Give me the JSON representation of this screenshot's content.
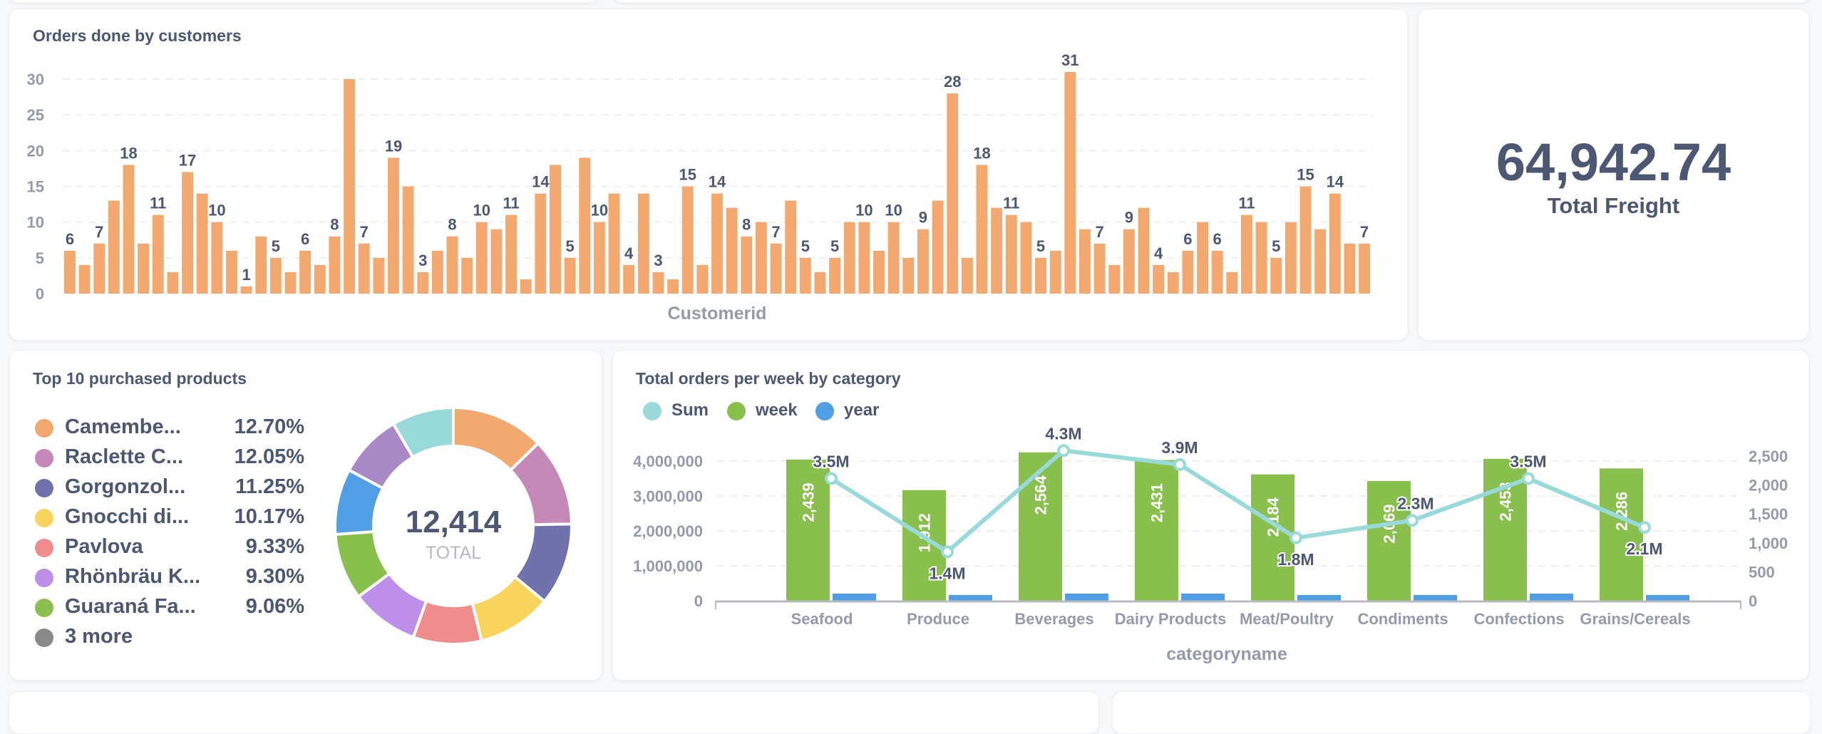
{
  "dashboard": {
    "orders_card": {
      "title": "Orders done by customers"
    },
    "freight_card": {
      "value": "64,942.74",
      "label": "Total Freight"
    },
    "products_card": {
      "title": "Top 10 purchased products",
      "legend": [
        {
          "name": "Camembe...",
          "percent": "12.70%",
          "color": "#f2a86f"
        },
        {
          "name": "Raclette C...",
          "percent": "12.05%",
          "color": "#c589b9"
        },
        {
          "name": "Gorgonzol...",
          "percent": "11.25%",
          "color": "#7172ad"
        },
        {
          "name": "Gnocchi di...",
          "percent": "10.17%",
          "color": "#f9d45c"
        },
        {
          "name": "Pavlova",
          "percent": "9.33%",
          "color": "#ef8c8c"
        },
        {
          "name": "Rhönbräu K...",
          "percent": "9.30%",
          "color": "#bd8fe9"
        },
        {
          "name": "Guaraná Fa...",
          "percent": "9.06%",
          "color": "#88bf4d"
        }
      ],
      "more_label": "3 more",
      "more_color": "#888888",
      "total": "12,414",
      "total_label": "TOTAL"
    },
    "category_card": {
      "title": "Total orders per week by category",
      "legend": [
        {
          "name": "Sum",
          "color": "#98d9d9"
        },
        {
          "name": "week",
          "color": "#88bf4d"
        },
        {
          "name": "year",
          "color": "#509ee3"
        }
      ]
    }
  },
  "chart_data": [
    {
      "type": "bar",
      "title": "Orders done by customers",
      "xlabel": "Customerid",
      "ylabel": "",
      "ylim": [
        0,
        31
      ],
      "yticks": [
        0,
        5,
        10,
        15,
        20,
        25,
        30
      ],
      "grid": true,
      "color": "#f2a86f",
      "values": [
        6,
        4,
        7,
        13,
        18,
        7,
        11,
        3,
        17,
        14,
        10,
        6,
        1,
        8,
        5,
        3,
        6,
        4,
        8,
        30,
        7,
        5,
        19,
        15,
        3,
        6,
        8,
        5,
        10,
        9,
        11,
        2,
        14,
        18,
        5,
        19,
        10,
        14,
        4,
        14,
        3,
        2,
        15,
        4,
        14,
        12,
        8,
        10,
        7,
        13,
        5,
        3,
        5,
        10,
        10,
        6,
        10,
        5,
        9,
        13,
        28,
        5,
        18,
        12,
        11,
        10,
        5,
        6,
        31,
        9,
        7,
        4,
        9,
        12,
        4,
        3,
        6,
        10,
        6,
        3,
        11,
        10,
        5,
        10,
        15,
        9,
        14,
        7,
        7
      ]
    },
    {
      "type": "pie",
      "title": "Top 10 purchased products",
      "donut": true,
      "total": 12414,
      "slices": [
        {
          "label": "Camembe...",
          "value": 12.7,
          "color": "#f2a86f"
        },
        {
          "label": "Raclette C...",
          "value": 12.05,
          "color": "#c589b9"
        },
        {
          "label": "Gorgonzol...",
          "value": 11.25,
          "color": "#7172ad"
        },
        {
          "label": "Gnocchi di...",
          "value": 10.17,
          "color": "#f9d45c"
        },
        {
          "label": "Pavlova",
          "value": 9.33,
          "color": "#ef8c8c"
        },
        {
          "label": "Rhönbräu K...",
          "value": 9.3,
          "color": "#bd8fe9"
        },
        {
          "label": "Guaraná Fa...",
          "value": 9.06,
          "color": "#88bf4d"
        },
        {
          "value": 8.96,
          "color": "#509ee3"
        },
        {
          "value": 8.72,
          "color": "#a989c5"
        },
        {
          "value": 8.46,
          "color": "#98d9d9"
        }
      ],
      "legend": "left"
    },
    {
      "type": "bar",
      "title": "Total orders per week by category",
      "xlabel": "categoryname",
      "categories": [
        "Seafood",
        "Produce",
        "Beverages",
        "Dairy Products",
        "Meat/Poultry",
        "Condiments",
        "Confections",
        "Grains/Cereals"
      ],
      "left_axis": {
        "ylim": [
          0,
          4000000
        ],
        "ticks": [
          "0",
          "1,000,000",
          "2,000,000",
          "3,000,000",
          "4,000,000"
        ]
      },
      "right_axis": {
        "ylim": [
          0,
          2500
        ],
        "ticks": [
          "0",
          "500",
          "1,000",
          "1,500",
          "2,000",
          "2,500"
        ]
      },
      "grid": true,
      "legend": "top-left",
      "series": [
        {
          "name": "Sum",
          "type": "line",
          "axis": "left",
          "color": "#98d9d9",
          "values": [
            3500000,
            1400000,
            4300000,
            3900000,
            1800000,
            2300000,
            3500000,
            2100000
          ],
          "labels": [
            "3.5M",
            "1.4M",
            "4.3M",
            "3.9M",
            "1.8M",
            "2.3M",
            "3.5M",
            "2.1M"
          ]
        },
        {
          "name": "week",
          "type": "bar",
          "axis": "right",
          "color": "#88bf4d",
          "values": [
            2439,
            1912,
            2564,
            2431,
            2184,
            2069,
            2453,
            2286
          ],
          "labels": [
            "2,439",
            "1,912",
            "2,564",
            "2,431",
            "2,184",
            "2,069",
            "2,453",
            "2,286"
          ]
        },
        {
          "name": "year",
          "type": "bar",
          "axis": "left",
          "color": "#509ee3",
          "values": [
            205000,
            165000,
            205000,
            205000,
            165000,
            165000,
            205000,
            165000
          ]
        }
      ]
    }
  ]
}
